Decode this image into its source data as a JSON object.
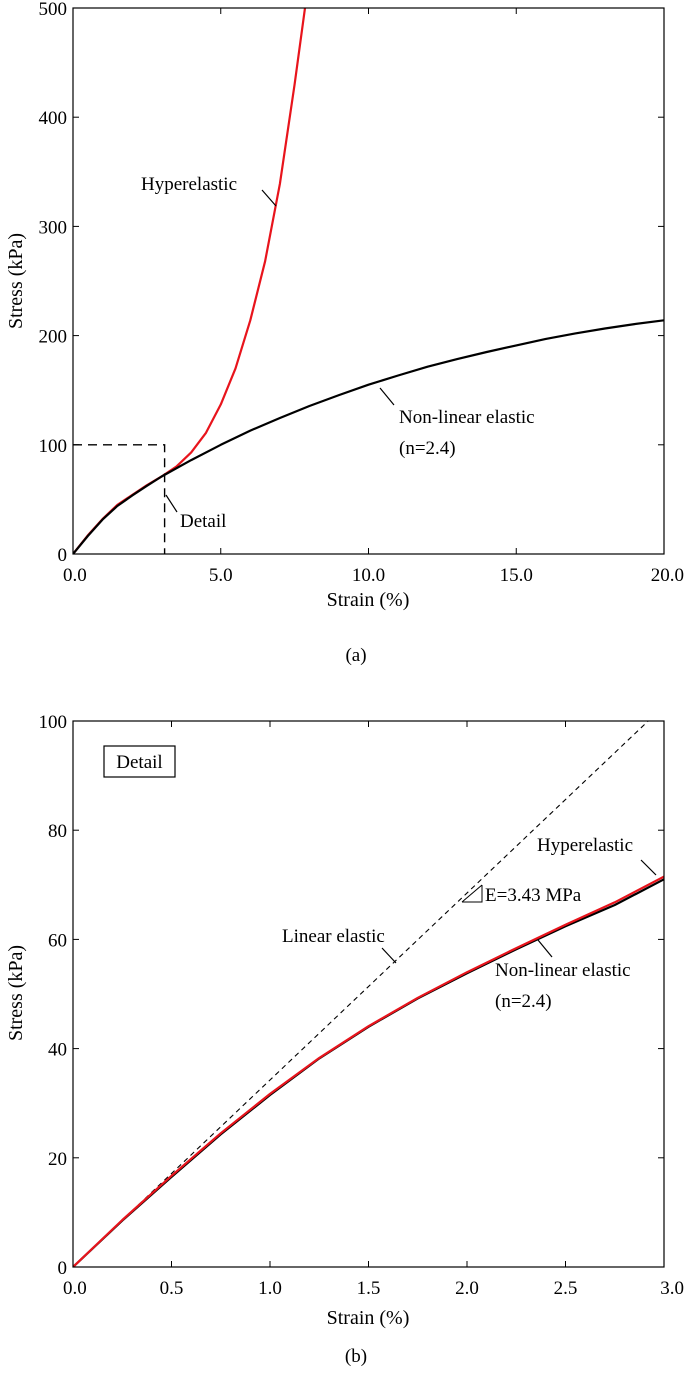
{
  "figure": {
    "captions": [
      "(a)",
      "(b)"
    ]
  },
  "colors": {
    "hyperelastic": "#e8141c",
    "nonlinear": "#000000",
    "linear": "#000000",
    "axes": "#000000"
  },
  "chart_data": [
    {
      "type": "line",
      "caption": "(a)",
      "xlabel": "Strain (%)",
      "ylabel": "Stress (kPa)",
      "xlim": [
        0,
        20
      ],
      "ylim": [
        0,
        500
      ],
      "xticks": [
        0,
        5,
        10,
        15,
        20
      ],
      "xtick_labels": [
        "0.0",
        "5.0",
        "10.0",
        "15.0",
        "20.0"
      ],
      "yticks": [
        0,
        100,
        200,
        300,
        400,
        500
      ],
      "ytick_labels": [
        "0",
        "100",
        "200",
        "300",
        "400",
        "500"
      ],
      "grid": false,
      "series": [
        {
          "name": "Hyperelastic",
          "color": "#e8141c",
          "style": "solid",
          "x": [
            0,
            0.5,
            1.0,
            1.5,
            2.0,
            2.5,
            3.0,
            3.5,
            4.0,
            4.5,
            5.0,
            5.5,
            6.0,
            6.5,
            7.0,
            7.5,
            7.85
          ],
          "y": [
            0,
            17.0,
            32.0,
            45.0,
            54.0,
            63.0,
            71.0,
            80.0,
            93.0,
            111.0,
            137.0,
            170.0,
            214.0,
            268.0,
            339.0,
            430.0,
            500.0
          ]
        },
        {
          "name": "Non-linear elastic (n=2.4)",
          "color": "#000000",
          "style": "solid",
          "x": [
            0,
            0.5,
            1.0,
            1.5,
            2.0,
            2.5,
            3.0,
            4.0,
            5.0,
            6.0,
            7.0,
            8.0,
            9.0,
            10.0,
            11.0,
            12.0,
            13.0,
            14.0,
            15.0,
            16.0,
            17.0,
            18.0,
            19.0,
            20.0
          ],
          "y": [
            0,
            16.5,
            31.5,
            44.0,
            53.5,
            62.5,
            71.0,
            86.0,
            100.0,
            113.0,
            124.5,
            135.5,
            145.5,
            155.0,
            163.5,
            171.5,
            178.5,
            185.0,
            191.0,
            197.0,
            202.0,
            206.5,
            210.5,
            214.0
          ]
        }
      ],
      "annotations": [
        {
          "text": "Hyperelastic",
          "pointer": [
            6.85,
            320
          ]
        },
        {
          "text": "Non-linear elastic",
          "text2": "(n=2.4)",
          "pointer": [
            10.9,
            154
          ]
        },
        {
          "text": "Detail",
          "pointer": [
            3.1,
            58
          ]
        }
      ],
      "detail_box": {
        "x_max": 3.1,
        "y_max": 100
      }
    },
    {
      "type": "line",
      "caption": "(b)",
      "xlabel": "Strain (%)",
      "ylabel": "Stress (kPa)",
      "xlim": [
        0,
        3
      ],
      "ylim": [
        0,
        100
      ],
      "xticks": [
        0,
        0.5,
        1.0,
        1.5,
        2.0,
        2.5,
        3.0
      ],
      "xtick_labels": [
        "0.0",
        "0.5",
        "1.0",
        "1.5",
        "2.0",
        "2.5",
        "3.0"
      ],
      "yticks": [
        0,
        20,
        40,
        60,
        80,
        100
      ],
      "ytick_labels": [
        "0",
        "20",
        "40",
        "60",
        "80",
        "100"
      ],
      "grid": false,
      "legend_box": "Detail",
      "series": [
        {
          "name": "Linear elastic",
          "color": "#000000",
          "style": "dashed",
          "x": [
            0.0,
            2.92
          ],
          "y": [
            0.0,
            100.0
          ]
        },
        {
          "name": "Non-linear elastic (n=2.4)",
          "color": "#000000",
          "style": "solid",
          "x": [
            0,
            0.25,
            0.5,
            0.75,
            1.0,
            1.25,
            1.5,
            1.75,
            2.0,
            2.25,
            2.5,
            2.75,
            3.0
          ],
          "y": [
            0,
            8.5,
            16.5,
            24.3,
            31.5,
            38.2,
            44.0,
            49.2,
            53.8,
            58.2,
            62.4,
            66.3,
            71.0
          ]
        },
        {
          "name": "Hyperelastic",
          "color": "#e8141c",
          "style": "solid",
          "x": [
            0,
            0.25,
            0.5,
            0.75,
            1.0,
            1.25,
            1.5,
            1.75,
            2.0,
            2.25,
            2.5,
            2.75,
            3.0
          ],
          "y": [
            0,
            8.6,
            16.7,
            24.5,
            31.7,
            38.3,
            44.1,
            49.3,
            54.0,
            58.4,
            62.7,
            66.8,
            71.5
          ]
        }
      ],
      "annotations": [
        {
          "text": "Hyperelastic",
          "pointer": [
            2.97,
            71.2
          ]
        },
        {
          "text": "E=3.43 MPa"
        },
        {
          "text": "Linear elastic",
          "pointer": [
            1.63,
            55.8
          ]
        },
        {
          "text": "Non-linear elastic",
          "text2": "(n=2.4)",
          "pointer": [
            2.37,
            60.5
          ]
        }
      ]
    }
  ]
}
